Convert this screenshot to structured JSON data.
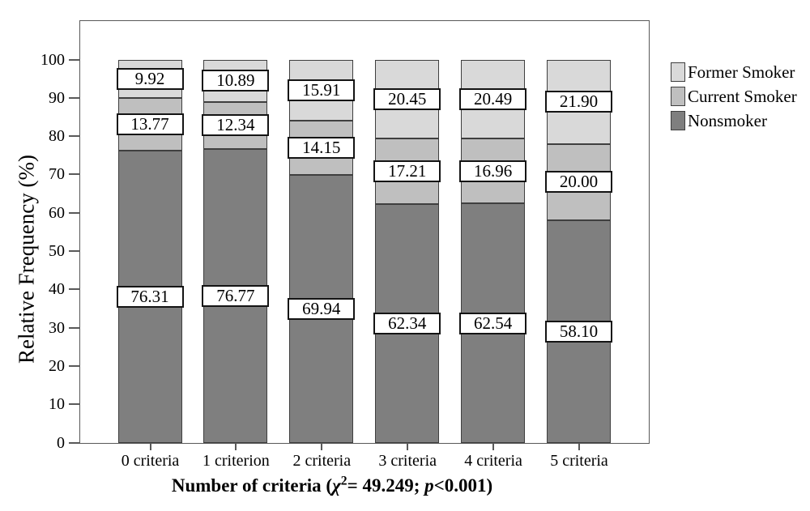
{
  "figure": {
    "background": "#ffffff",
    "frame_color": "#595959",
    "label_box_border": "#141414"
  },
  "chart_data": {
    "type": "bar",
    "stacked": true,
    "title": "",
    "xlabel": "Number of criteria (χ²= 49.249; p<0.001)",
    "ylabel": "Relative Frequency (%)",
    "categories": [
      "0 criteria",
      "1 criterion",
      "2 criteria",
      "3 criteria",
      "4 criteria",
      "5 criteria"
    ],
    "series": [
      {
        "name": "Nonsmoker",
        "color": "#7f7f7f",
        "values": [
          76.31,
          76.77,
          69.94,
          62.34,
          62.54,
          58.1
        ],
        "labels": [
          "76.31",
          "76.77",
          "69.94",
          "62.34",
          "62.54",
          "58.10"
        ]
      },
      {
        "name": "Current Smoker",
        "color": "#bfbfbf",
        "values": [
          13.77,
          12.34,
          14.15,
          17.21,
          16.96,
          20.0
        ],
        "labels": [
          "13.77",
          "12.34",
          "14.15",
          "17.21",
          "16.96",
          "20.00"
        ]
      },
      {
        "name": "Former Smoker",
        "color": "#d9d9d9",
        "values": [
          9.92,
          10.89,
          15.91,
          20.45,
          20.49,
          21.9
        ],
        "labels": [
          "9.92",
          "10.89",
          "15.91",
          "20.45",
          "20.49",
          "21.90"
        ]
      }
    ],
    "ylim": [
      0,
      100
    ],
    "yticks": [
      0,
      10,
      20,
      30,
      40,
      50,
      60,
      70,
      80,
      90,
      100
    ],
    "grid": false,
    "legend": {
      "position": "right",
      "items": [
        "Former Smoker",
        "Current Smoker",
        "Nonsmoker"
      ]
    },
    "xaxis_title_parts": [
      {
        "text": "Number of criteria (",
        "style": "normal"
      },
      {
        "text": "χ",
        "style": "italic"
      },
      {
        "text": "2",
        "style": "sup"
      },
      {
        "text": "= 49.249; ",
        "style": "normal"
      },
      {
        "text": "p",
        "style": "italic"
      },
      {
        "text": "<0.001)",
        "style": "normal"
      }
    ]
  }
}
